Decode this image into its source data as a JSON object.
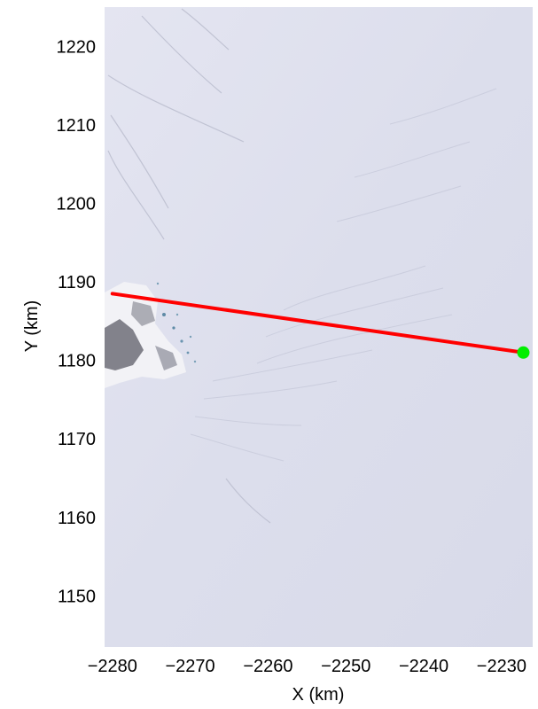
{
  "chart_data": {
    "type": "map",
    "xlabel": "X (km)",
    "ylabel": "Y (km)",
    "xlim": [
      -2281,
      -2226
    ],
    "ylim": [
      1143.5,
      1225
    ],
    "x_ticks": [
      "−2280",
      "−2270",
      "−2260",
      "−2250",
      "−2240",
      "−2230"
    ],
    "x_tick_values": [
      -2280,
      -2270,
      -2260,
      -2250,
      -2240,
      -2230
    ],
    "y_ticks": [
      "1150",
      "1160",
      "1170",
      "1180",
      "1190",
      "1200",
      "1210",
      "1220"
    ],
    "y_tick_values": [
      1150,
      1160,
      1170,
      1180,
      1190,
      1200,
      1210,
      1220
    ],
    "background": "satellite ice sheet imagery",
    "line": {
      "color": "#ff0000",
      "points": [
        {
          "x": -2280,
          "y": 1188.5
        },
        {
          "x": -2227.2,
          "y": 1181
        }
      ]
    },
    "marker": {
      "color": "#00ee00",
      "shape": "circle",
      "x": -2227.2,
      "y": 1181
    }
  }
}
